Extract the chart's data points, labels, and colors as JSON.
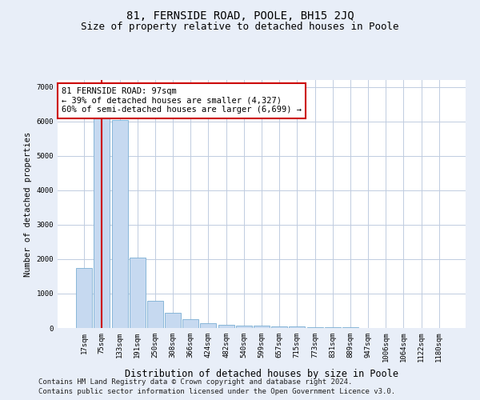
{
  "title": "81, FERNSIDE ROAD, POOLE, BH15 2JQ",
  "subtitle": "Size of property relative to detached houses in Poole",
  "xlabel": "Distribution of detached houses by size in Poole",
  "ylabel": "Number of detached properties",
  "bar_labels": [
    "17sqm",
    "75sqm",
    "133sqm",
    "191sqm",
    "250sqm",
    "308sqm",
    "366sqm",
    "424sqm",
    "482sqm",
    "540sqm",
    "599sqm",
    "657sqm",
    "715sqm",
    "773sqm",
    "831sqm",
    "889sqm",
    "947sqm",
    "1006sqm",
    "1064sqm",
    "1122sqm",
    "1180sqm"
  ],
  "bar_values": [
    1750,
    6150,
    6050,
    2050,
    800,
    430,
    250,
    150,
    100,
    80,
    60,
    45,
    35,
    25,
    18,
    12,
    8,
    5,
    4,
    3,
    2
  ],
  "bar_color": "#c6d9f0",
  "bar_edge_color": "#7bafd4",
  "vline_x": 1.0,
  "vline_color": "#cc0000",
  "annotation_text": "81 FERNSIDE ROAD: 97sqm\n← 39% of detached houses are smaller (4,327)\n60% of semi-detached houses are larger (6,699) →",
  "annotation_box_color": "#ffffff",
  "annotation_box_edge": "#cc0000",
  "ylim": [
    0,
    7200
  ],
  "yticks": [
    0,
    1000,
    2000,
    3000,
    4000,
    5000,
    6000,
    7000
  ],
  "footnote1": "Contains HM Land Registry data © Crown copyright and database right 2024.",
  "footnote2": "Contains public sector information licensed under the Open Government Licence v3.0.",
  "bg_color": "#e8eef8",
  "plot_bg_color": "#ffffff",
  "grid_color": "#c0cce0",
  "title_fontsize": 10,
  "subtitle_fontsize": 9,
  "xlabel_fontsize": 8.5,
  "ylabel_fontsize": 7.5,
  "tick_fontsize": 6.5,
  "annot_fontsize": 7.5,
  "footnote_fontsize": 6.5
}
